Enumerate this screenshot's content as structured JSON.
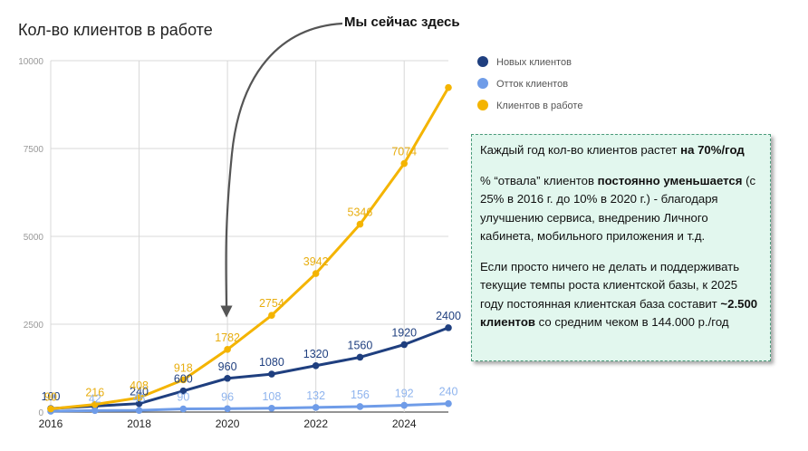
{
  "chart_data": {
    "type": "line",
    "title": "Кол-во клиентов в работе",
    "x": [
      2016,
      2017,
      2018,
      2019,
      2020,
      2021,
      2022,
      2023,
      2024,
      2025
    ],
    "xticks": [
      "2016",
      "2018",
      "2020",
      "2022",
      "2024"
    ],
    "yticks": [
      "0",
      "2500",
      "5000",
      "7500",
      "10000"
    ],
    "ylim": [
      0,
      10000
    ],
    "grid": true,
    "legend_position": "top-right",
    "series": [
      {
        "name": "Новых клиентов",
        "color": "#1f3f7f",
        "labelColor": "#1f3f7f",
        "values": [
          100,
          170,
          240,
          600,
          960,
          1080,
          1320,
          1560,
          1920,
          2400
        ],
        "labels": [
          "100",
          "",
          "240",
          "600",
          "960",
          "1080",
          "1320",
          "1560",
          "1920",
          "2400"
        ]
      },
      {
        "name": "Отток клиентов",
        "color": "#6f9ce8",
        "labelColor": "#8fb4ee",
        "values": [
          25,
          42,
          48,
          90,
          96,
          108,
          132,
          156,
          192,
          240
        ],
        "labels": [
          "",
          "42",
          "48",
          "90",
          "96",
          "108",
          "132",
          "156",
          "192",
          "240"
        ]
      },
      {
        "name": "Клиентов в работе",
        "color": "#f4b400",
        "labelColor": "#e8ae10",
        "values": [
          90,
          216,
          408,
          918,
          1782,
          2754,
          3942,
          5346,
          7074,
          9234
        ],
        "labels": [
          "90",
          "216",
          "408",
          "918",
          "1782",
          "2754",
          "3942",
          "5346",
          "7074",
          ""
        ]
      }
    ],
    "annotation": {
      "text": "Мы сейчас здесь",
      "points_to_x": 2020
    }
  },
  "note": {
    "p1_pre": "Каждый год кол-во клиентов растет ",
    "p1_bold": "на 70%/год",
    "p2_a": "% “отвала” клиентов ",
    "p2_bold": "постоянно уменьшается",
    "p2_b": " (с 25% в 2016 г. до 10% в 2020 г.) - благодаря улучшению сервиса, внедрению Личного кабинета, мобильного приложения и т.д.",
    "p3_a": "Если просто ничего не делать и поддерживать текущие темпы роста клиентской базы, к 2025 году постоянная клиентская база составит ",
    "p3_bold": "~2.500 клиентов",
    "p3_b": " со средним чеком в 144.000 р./год"
  }
}
